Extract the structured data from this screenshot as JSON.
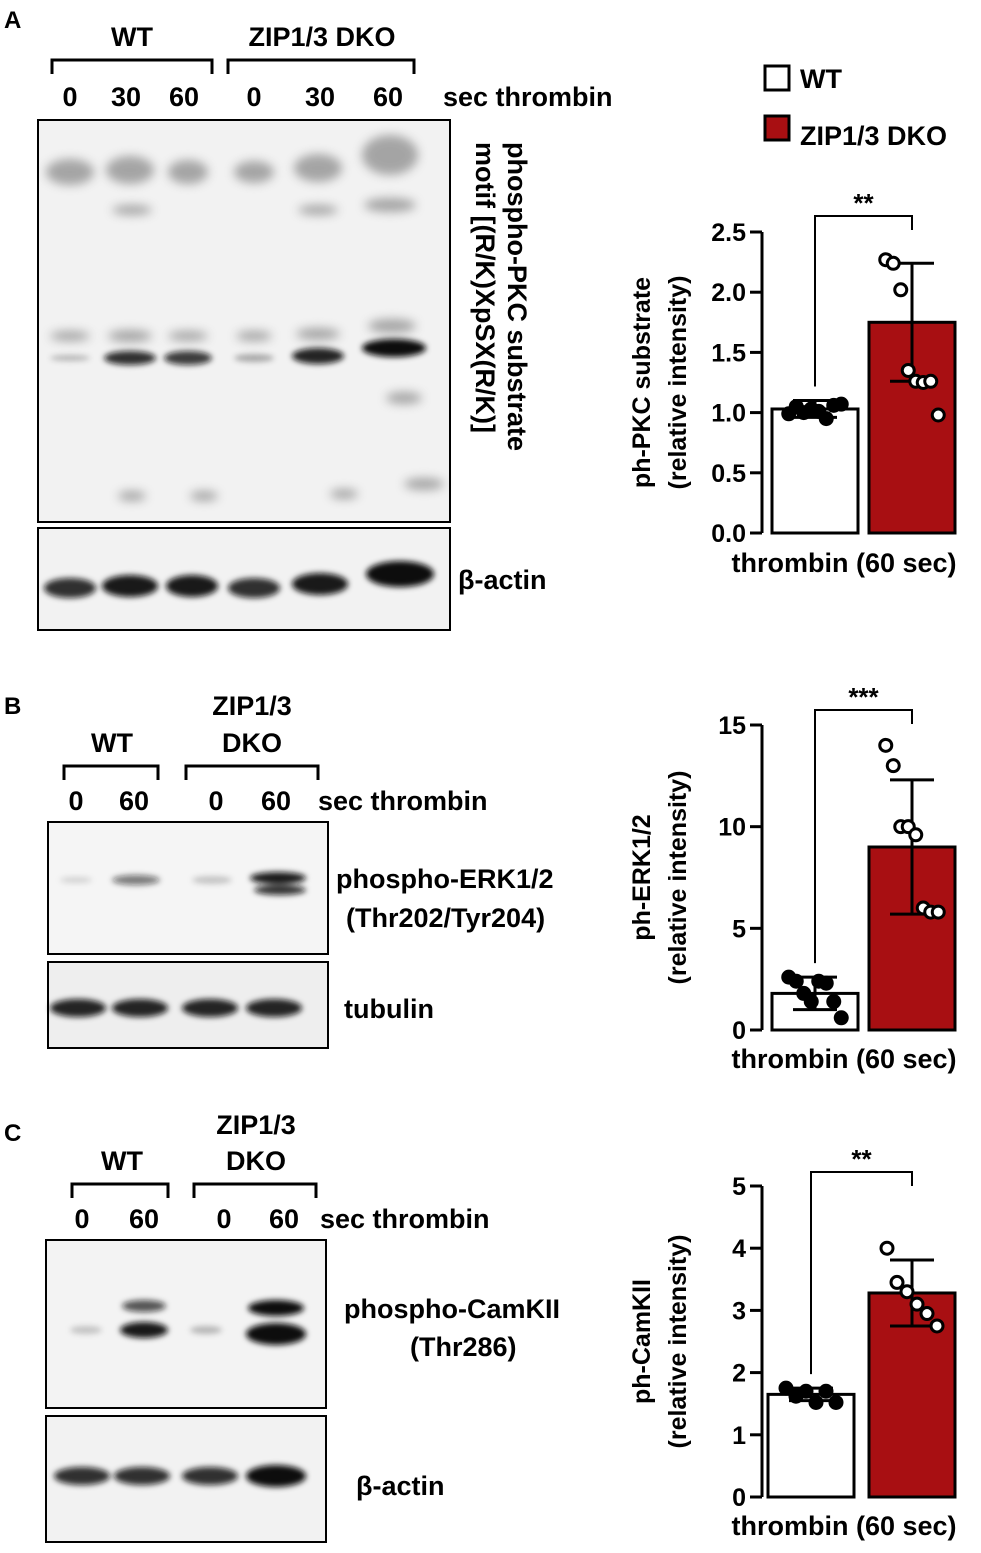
{
  "colors": {
    "wt": "#ffffff",
    "dko": "#a80f12",
    "outline": "#000000",
    "blot_bg": "#f1f1f1"
  },
  "legend": {
    "wt": "WT",
    "dko": "ZIP1/3 DKO"
  },
  "panels": [
    {
      "letter": "A",
      "groups": [
        "WT",
        "ZIP1/3 DKO"
      ],
      "lanes": [
        "0",
        "30",
        "60",
        "0",
        "30",
        "60"
      ],
      "lanes_unit": "sec thrombin",
      "blot_labels": [
        "phospho-PKC substrate",
        "motif [(R/K)XpSX(R/K)]"
      ],
      "loading_label": "β-actin"
    },
    {
      "letter": "B",
      "groups": [
        "WT",
        "ZIP1/3",
        "DKO"
      ],
      "lanes": [
        "0",
        "60",
        "0",
        "60"
      ],
      "lanes_unit": "sec thrombin",
      "blot_labels": [
        "phospho-ERK1/2",
        "(Thr202/Tyr204)"
      ],
      "loading_label": "tubulin"
    },
    {
      "letter": "C",
      "groups": [
        "WT",
        "ZIP1/3",
        "DKO"
      ],
      "lanes": [
        "0",
        "60",
        "0",
        "60"
      ],
      "lanes_unit": "sec thrombin",
      "blot_labels": [
        "phospho-CamKII",
        "(Thr286)"
      ],
      "loading_label": "β-actin"
    }
  ],
  "chart_data": [
    {
      "type": "bar",
      "categories": [
        "WT",
        "ZIP1/3 DKO"
      ],
      "values": [
        1.03,
        1.75
      ],
      "errors": [
        0.07,
        0.49
      ],
      "points": [
        [
          0.99,
          1.05,
          1.0,
          1.03,
          1.01,
          0.95,
          1.06,
          1.07
        ],
        [
          2.27,
          2.24,
          2.02,
          1.35,
          1.26,
          1.25,
          1.26,
          0.98
        ]
      ],
      "ylim": [
        0,
        2.5
      ],
      "yticks": [
        "0.0",
        "0.5",
        "1.0",
        "1.5",
        "2.0",
        "2.5"
      ],
      "ylabel": [
        "ph-PKC substrate",
        "(relative intensity)"
      ],
      "xlabel": "thrombin (60 sec)",
      "significance": "**"
    },
    {
      "type": "bar",
      "categories": [
        "WT",
        "ZIP1/3 DKO"
      ],
      "values": [
        1.8,
        9.0
      ],
      "errors": [
        0.8,
        3.3
      ],
      "points": [
        [
          2.6,
          2.4,
          1.8,
          1.4,
          2.4,
          2.3,
          1.4,
          0.6
        ],
        [
          14.0,
          13.0,
          10.0,
          10.0,
          9.6,
          6.0,
          5.8,
          5.8
        ]
      ],
      "ylim": [
        0,
        15
      ],
      "yticks": [
        "0",
        "5",
        "10",
        "15"
      ],
      "ylabel": [
        "ph-ERK1/2",
        "(relative intensity)"
      ],
      "xlabel": "thrombin (60 sec)",
      "significance": "***"
    },
    {
      "type": "bar",
      "categories": [
        "WT",
        "ZIP1/3 DKO"
      ],
      "values": [
        1.65,
        3.28
      ],
      "errors": [
        0.1,
        0.53
      ],
      "points": [
        [
          1.75,
          1.62,
          1.7,
          1.52,
          1.7,
          1.52
        ],
        [
          4.0,
          3.45,
          3.3,
          3.1,
          2.95,
          2.75
        ]
      ],
      "ylim": [
        0,
        5
      ],
      "yticks": [
        "0",
        "1",
        "2",
        "3",
        "4",
        "5"
      ],
      "ylabel": [
        "ph-CamKII",
        "(relative intensity)"
      ],
      "xlabel": "thrombin (60 sec)",
      "significance": "**"
    }
  ]
}
